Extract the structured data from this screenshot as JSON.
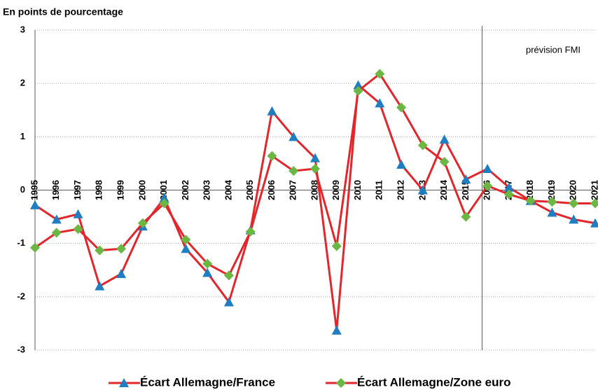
{
  "chart_data": {
    "type": "line",
    "ylabel": "En points de pourcentage",
    "annotation": "prévision FMI",
    "categories": [
      "1995",
      "1996",
      "1997",
      "1998",
      "1999",
      "2000",
      "2001",
      "2002",
      "2003",
      "2004",
      "2005",
      "2006",
      "2007",
      "2008",
      "2009",
      "2010",
      "2011",
      "2012",
      "2013",
      "2014",
      "2015",
      "2016",
      "2017",
      "2018",
      "2019",
      "2020",
      "2021"
    ],
    "series": [
      {
        "name": "Écart Allemagne/France",
        "line_color": "#e3262b",
        "color": "#1f7dc1",
        "marker": "triangle",
        "values": [
          -0.28,
          -0.55,
          -0.45,
          -1.8,
          -1.57,
          -0.68,
          -0.15,
          -1.1,
          -1.55,
          -2.1,
          -0.75,
          1.48,
          1.0,
          0.6,
          -2.63,
          1.97,
          1.63,
          0.48,
          0.0,
          0.95,
          0.2,
          0.4,
          0.05,
          -0.2,
          -0.42,
          -0.55,
          -0.62
        ]
      },
      {
        "name": "Écart Allemagne/Zone euro",
        "line_color": "#e3262b",
        "color": "#6ab843",
        "marker": "diamond",
        "values": [
          -1.08,
          -0.8,
          -0.73,
          -1.13,
          -1.1,
          -0.62,
          -0.25,
          -0.93,
          -1.38,
          -1.6,
          -0.78,
          0.64,
          0.36,
          0.4,
          -1.05,
          1.86,
          2.18,
          1.55,
          0.84,
          0.53,
          -0.5,
          0.08,
          -0.08,
          -0.2,
          -0.22,
          -0.25,
          -0.25
        ]
      }
    ],
    "ylim": [
      -3,
      3
    ],
    "yticks": [
      -3,
      -2,
      -1,
      0,
      1,
      2,
      3
    ],
    "grid": true,
    "legend": "bottom"
  }
}
